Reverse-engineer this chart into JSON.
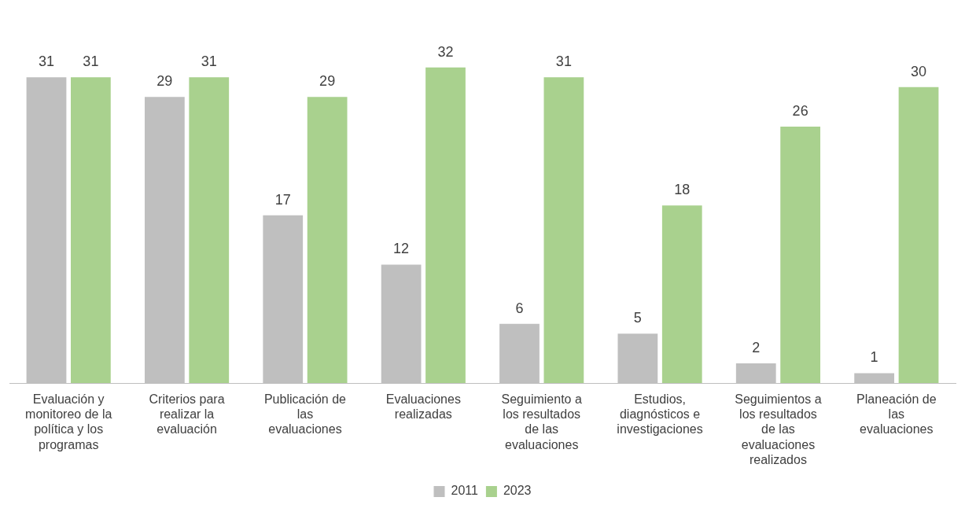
{
  "chart_data": {
    "type": "bar",
    "categories": [
      "Evaluación y monitoreo de la política y los programas",
      "Criterios para realizar la evaluación",
      "Publicación de las evaluaciones",
      "Evaluaciones realizadas",
      "Seguimiento a los resultados de las evaluaciones",
      "Estudios, diagnósticos e investigaciones",
      "Seguimientos a los resultados de las evaluaciones realizados",
      "Planeación de las evaluaciones"
    ],
    "series": [
      {
        "name": "2011",
        "color": "#bfbfbf",
        "values": [
          31,
          29,
          17,
          12,
          6,
          5,
          2,
          1
        ]
      },
      {
        "name": "2023",
        "color": "#a9d18e",
        "values": [
          31,
          31,
          29,
          32,
          31,
          18,
          26,
          30
        ]
      }
    ],
    "data_labels": true,
    "legend": "bottom",
    "grid": false,
    "tick_labels": "x"
  }
}
